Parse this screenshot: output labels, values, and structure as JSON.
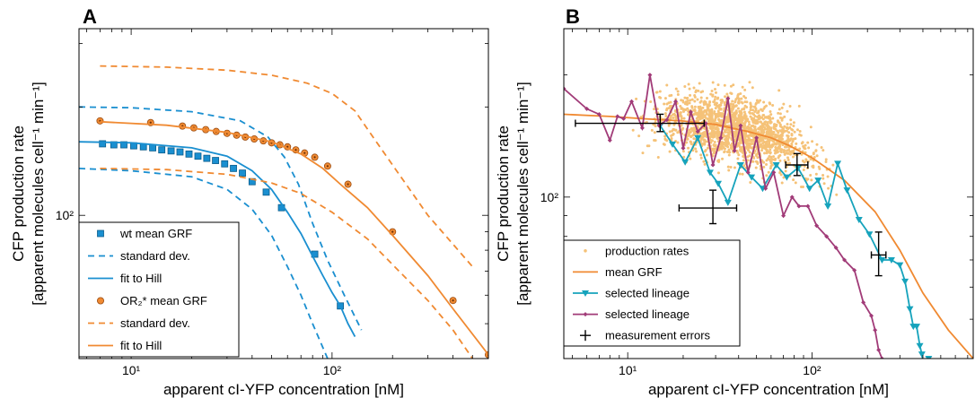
{
  "chart_data": [
    {
      "panel": "A",
      "type": "scatter",
      "xscale": "log",
      "yscale": "log",
      "xlim": [
        5.5,
        600
      ],
      "ylim": [
        40,
        330
      ],
      "xlabel": "apparent cI-YFP concentration [nM]",
      "ylabel_line1": "CFP production rate",
      "ylabel_line2": "[apparent molecules cell⁻¹ min⁻¹]",
      "xticks": [
        {
          "value": 10,
          "label": "10¹"
        },
        {
          "value": 100,
          "label": "10²"
        }
      ],
      "yticks": [
        {
          "value": 100,
          "label": "10²"
        }
      ],
      "legend_position": "lower-left",
      "colors": {
        "blue": "#1a8fd0",
        "orange": "#f08a32"
      },
      "series": [
        {
          "name": "wt mean GRF",
          "style": "square-marker",
          "color": "#1a8fd0",
          "x": [
            7.2,
            8.2,
            9.2,
            10.3,
            11.5,
            12.8,
            14.2,
            15.8,
            17.5,
            19.4,
            21.5,
            23.8,
            26.3,
            29.2,
            32.3,
            35.8,
            40,
            47,
            56,
            82,
            110
          ],
          "y": [
            158,
            157,
            157,
            156,
            155,
            154,
            152,
            151,
            150,
            148,
            146,
            144,
            142,
            139,
            135,
            131,
            124,
            116,
            105,
            78,
            56
          ]
        },
        {
          "name": "standard dev.",
          "style": "dashed",
          "color": "#1a8fd0",
          "x": [
            5.5,
            10,
            20,
            35,
            48,
            58,
            68,
            80,
            95,
            115,
            140
          ],
          "y": [
            200,
            199,
            194,
            183,
            165,
            145,
            122,
            95,
            75,
            60,
            48
          ]
        },
        {
          "name": "",
          "style": "dashed",
          "color": "#1a8fd0",
          "x": [
            5.5,
            10,
            20,
            30,
            40,
            50,
            60,
            70,
            80,
            95
          ],
          "y": [
            135,
            133,
            128,
            118,
            104,
            88,
            72,
            60,
            50,
            40
          ]
        },
        {
          "name": "fit to Hill",
          "style": "solid",
          "color": "#1a8fd0",
          "x": [
            5.5,
            10,
            20,
            30,
            40,
            50,
            60,
            70,
            80,
            90,
            100,
            110,
            120,
            130
          ],
          "y": [
            160,
            159,
            154,
            146,
            133,
            118,
            102,
            89,
            77,
            68,
            61,
            56,
            50,
            46
          ]
        },
        {
          "name": "OR₂* mean GRF",
          "style": "circle-marker",
          "color": "#f08a32",
          "x": [
            7,
            12.5,
            18,
            20.5,
            23.5,
            26.5,
            30,
            33.5,
            37,
            41,
            45.5,
            50,
            55,
            60,
            66,
            73,
            82,
            95,
            120,
            200,
            400,
            600
          ],
          "y": [
            183,
            181,
            177,
            175,
            173,
            171,
            169,
            167,
            165,
            163,
            161,
            159,
            157,
            155,
            152,
            149,
            145,
            137,
            122,
            90,
            58,
            41
          ]
        },
        {
          "name": "standard dev.",
          "style": "dashed",
          "color": "#f08a32",
          "x": [
            7,
            15,
            30,
            50,
            75,
            100,
            130,
            160,
            200,
            300,
            500
          ],
          "y": [
            260,
            258,
            253,
            245,
            233,
            218,
            195,
            165,
            138,
            100,
            72
          ]
        },
        {
          "name": "",
          "style": "dashed",
          "color": "#f08a32",
          "x": [
            7,
            15,
            30,
            50,
            70,
            100,
            150,
            200,
            300,
            400,
            500
          ],
          "y": [
            135,
            134,
            130,
            123,
            115,
            102,
            86,
            73,
            58,
            48,
            40
          ]
        },
        {
          "name": "fit to Hill",
          "style": "solid",
          "color": "#f08a32",
          "x": [
            7,
            15,
            30,
            50,
            70,
            90,
            110,
            150,
            200,
            300,
            400,
            600
          ],
          "y": [
            182,
            178,
            170,
            160,
            148,
            135,
            122,
            105,
            88,
            68,
            55,
            41
          ]
        }
      ]
    },
    {
      "panel": "B",
      "type": "scatter",
      "xscale": "log",
      "yscale": "log",
      "xlim": [
        4.5,
        750
      ],
      "ylim": [
        40,
        260
      ],
      "xlabel": "apparent cI-YFP concentration [nM]",
      "ylabel_line1": "CFP production rate",
      "ylabel_line2": "[apparent molecules cell⁻¹ min⁻¹]",
      "xticks": [
        {
          "value": 10,
          "label": "10¹"
        },
        {
          "value": 100,
          "label": "10²"
        }
      ],
      "yticks": [
        {
          "value": 100,
          "label": "10²"
        }
      ],
      "legend_position": "lower-left",
      "colors": {
        "scatter": "#f5c278",
        "mean": "#f08a32",
        "teal": "#16a3bc",
        "purple": "#a13b78",
        "black": "#000000"
      },
      "scatter_cloud": {
        "name": "production rates",
        "n": 1800,
        "x_log_mean": 1.58,
        "x_log_sd": 0.33,
        "y_spread_log": 0.07
      },
      "series": [
        {
          "name": "mean GRF",
          "style": "solid",
          "color": "#f08a32",
          "x": [
            4.5,
            8,
            12,
            20,
            30,
            45,
            60,
            75,
            100,
            150,
            220,
            300,
            400,
            550,
            750
          ],
          "y": [
            160,
            158,
            156,
            154,
            151,
            145,
            140,
            134,
            125,
            110,
            92,
            74,
            58,
            47,
            40
          ]
        },
        {
          "name": "selected lineage",
          "style": "line-triangle",
          "color": "#16a3bc",
          "x": [
            15,
            17.5,
            20.5,
            24,
            28,
            31,
            35,
            41,
            47,
            54,
            64,
            73,
            84,
            97,
            108,
            122,
            138,
            155,
            180,
            205,
            240,
            270,
            300,
            320,
            340,
            355,
            370,
            385,
            395,
            405,
            430
          ],
          "y": [
            150,
            135,
            122,
            140,
            115,
            108,
            97,
            120,
            112,
            105,
            120,
            112,
            118,
            105,
            110,
            95,
            121,
            104,
            88,
            81,
            70,
            70,
            68,
            62,
            53,
            48,
            48,
            43,
            41,
            38,
            40
          ]
        },
        {
          "name": "selected lineage",
          "style": "line-diamond",
          "color": "#a13b78",
          "x": [
            4.5,
            6,
            7,
            8,
            8.8,
            9.5,
            10.5,
            12,
            13.2,
            14.8,
            16.3,
            18.2,
            20,
            22,
            24,
            26.5,
            29,
            32,
            35,
            38,
            41,
            45,
            50,
            56,
            62,
            70,
            78,
            85,
            95,
            106,
            120,
            135,
            150,
            170,
            190,
            210,
            220,
            230,
            240,
            250
          ],
          "y": [
            185,
            165,
            160,
            138,
            158,
            156,
            172,
            148,
            200,
            150,
            155,
            172,
            132,
            162,
            145,
            152,
            120,
            140,
            175,
            130,
            150,
            115,
            140,
            105,
            115,
            90,
            100,
            95,
            95,
            85,
            80,
            75,
            70,
            66,
            55,
            51,
            47,
            42,
            40,
            38
          ]
        },
        {
          "name": "measurement errors",
          "style": "errorbar",
          "color": "#000000",
          "points": [
            {
              "x": 15,
              "y": 152,
              "xlo": 5.2,
              "xhi": 26,
              "ylo": 145,
              "yhi": 160
            },
            {
              "x": 29,
              "y": 94,
              "xlo": 19,
              "xhi": 39,
              "ylo": 86,
              "yhi": 104
            },
            {
              "x": 83,
              "y": 120,
              "xlo": 72,
              "xhi": 95,
              "ylo": 113,
              "yhi": 128
            },
            {
              "x": 230,
              "y": 72,
              "xlo": 210,
              "xhi": 252,
              "ylo": 64,
              "yhi": 82
            }
          ]
        }
      ]
    }
  ],
  "legend_a": [
    {
      "label": "wt mean GRF",
      "color": "#1a8fd0",
      "symbol": "square"
    },
    {
      "label": "standard dev.",
      "color": "#1a8fd0",
      "symbol": "dash"
    },
    {
      "label": "fit to Hill",
      "color": "#1a8fd0",
      "symbol": "line"
    },
    {
      "label": "OR₂* mean GRF",
      "color": "#f08a32",
      "symbol": "circle"
    },
    {
      "label": "standard dev.",
      "color": "#f08a32",
      "symbol": "dash"
    },
    {
      "label": "fit to Hill",
      "color": "#f08a32",
      "symbol": "line"
    }
  ],
  "legend_b": [
    {
      "label": "production rates",
      "color": "#f5c278",
      "symbol": "dot"
    },
    {
      "label": "mean GRF",
      "color": "#f08a32",
      "symbol": "line"
    },
    {
      "label": "selected lineage",
      "color": "#16a3bc",
      "symbol": "triangle"
    },
    {
      "label": "selected lineage",
      "color": "#a13b78",
      "symbol": "diamond"
    },
    {
      "label": "measurement errors",
      "color": "#000000",
      "symbol": "cross"
    }
  ]
}
